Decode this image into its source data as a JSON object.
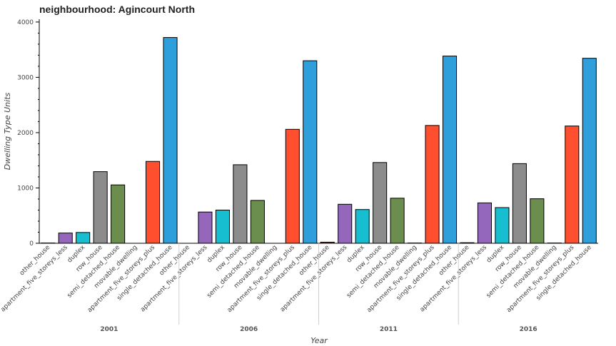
{
  "chart_data": {
    "type": "bar",
    "title": "neighbourhood: Agincourt North",
    "xlabel": "Year",
    "ylabel": "Dwelling Type Units",
    "ylim": [
      0,
      4050
    ],
    "yticks": [
      0,
      1000,
      2000,
      3000,
      4000
    ],
    "grid": false,
    "groups": [
      "2001",
      "2006",
      "2011",
      "2016"
    ],
    "categories": [
      "other_house",
      "apartment_five_storeys_less",
      "duplex",
      "row_house",
      "semi_detached_house",
      "movable_dwelling",
      "apartment_five_storeys_plus",
      "single_detached_house"
    ],
    "colors": [
      "#8c564b",
      "#9467bd",
      "#17becf",
      "#8c8c8c",
      "#6b8e4e",
      "#7f7f7f",
      "#ff4f2e",
      "#2e9fdb"
    ],
    "series": [
      {
        "group": "2001",
        "values": [
          5,
          185,
          195,
          1295,
          1055,
          0,
          1480,
          3720
        ]
      },
      {
        "group": "2006",
        "values": [
          0,
          565,
          600,
          1420,
          775,
          0,
          2060,
          3300
        ]
      },
      {
        "group": "2011",
        "values": [
          20,
          705,
          610,
          1460,
          815,
          5,
          2130,
          3385
        ]
      },
      {
        "group": "2016",
        "values": [
          10,
          730,
          645,
          1440,
          805,
          5,
          2120,
          3345
        ]
      }
    ]
  }
}
